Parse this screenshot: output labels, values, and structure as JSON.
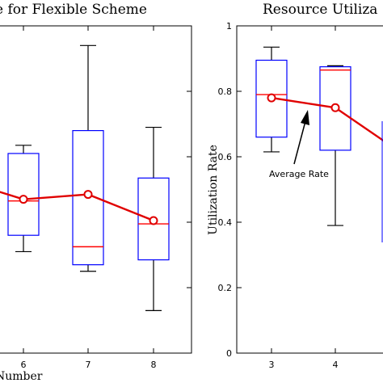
{
  "chart_data": [
    {
      "type": "box",
      "title": "e for Flexible Scheme",
      "xlabel": "Number",
      "ylabel": "",
      "categories": [
        "6",
        "7",
        "8"
      ],
      "ylim": [
        0,
        1
      ],
      "grid": false,
      "colors": {
        "box": "#0000ff",
        "median": "#ff0000",
        "mean": "#e00000",
        "whisker": "#000000"
      },
      "boxes": [
        {
          "category": "6",
          "whisker_low": 0.31,
          "q1": 0.36,
          "median": 0.465,
          "q3": 0.61,
          "whisker_high": 0.635
        },
        {
          "category": "7",
          "whisker_low": 0.25,
          "q1": 0.27,
          "median": 0.325,
          "q3": 0.68,
          "whisker_high": 0.94
        },
        {
          "category": "8",
          "whisker_low": 0.13,
          "q1": 0.285,
          "median": 0.395,
          "q3": 0.535,
          "whisker_high": 0.69
        }
      ],
      "mean_series": {
        "x": [
          "6",
          "7",
          "8"
        ],
        "values": [
          0.47,
          0.485,
          0.405
        ]
      }
    },
    {
      "type": "box",
      "title": "Resource Utiliza",
      "xlabel": "",
      "ylabel": "Utilization Rate",
      "categories": [
        "3",
        "4"
      ],
      "ylim": [
        0,
        1
      ],
      "yticks": [
        "0",
        "0.2",
        "0.4",
        "0.6",
        "0.8",
        "1"
      ],
      "grid": false,
      "annotation": "Average Rate",
      "colors": {
        "box": "#0000ff",
        "median": "#ff0000",
        "mean": "#e00000",
        "whisker": "#000000"
      },
      "boxes": [
        {
          "category": "3",
          "whisker_low": 0.615,
          "q1": 0.66,
          "median": 0.79,
          "q3": 0.895,
          "whisker_high": 0.935
        },
        {
          "category": "4",
          "whisker_low": 0.39,
          "q1": 0.62,
          "median": 0.865,
          "q3": 0.875,
          "whisker_high": 0.878
        }
      ],
      "mean_series": {
        "x": [
          "3",
          "4"
        ],
        "values": [
          0.78,
          0.75
        ]
      }
    }
  ]
}
